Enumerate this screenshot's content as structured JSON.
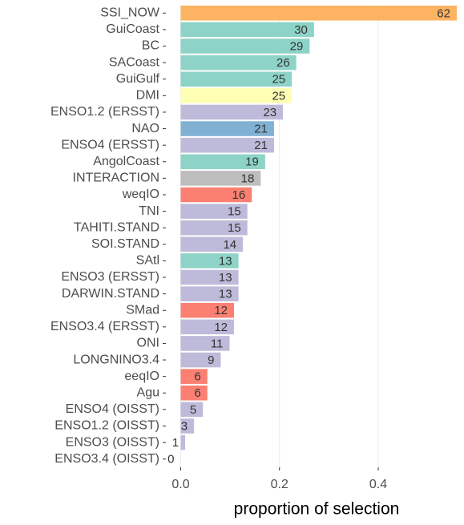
{
  "chart_data": {
    "type": "barh",
    "xlabel": "proportion of selection",
    "categories": [
      "SSI_NOW",
      "GuiCoast",
      "BC",
      "SACoast",
      "GuiGulf",
      "DMI",
      "ENSO1.2 (ERSST)",
      "NAO",
      "ENSO4 (ERSST)",
      "AngolCoast",
      "INTERACTION",
      "weqIO",
      "TNI",
      "TAHITI.STAND",
      "SOI.STAND",
      "SAtl",
      "ENSO3 (ERSST)",
      "DARWIN.STAND",
      "SMad",
      "ENSO3.4 (ERSST)",
      "ONI",
      "LONGNINO3.4",
      "eeqIO",
      "Agu",
      "ENSO4 (OISST)",
      "ENSO1.2 (OISST)",
      "ENSO3 (OISST)",
      "ENSO3.4 (OISST)"
    ],
    "values": [
      0.559,
      0.27,
      0.261,
      0.234,
      0.225,
      0.225,
      0.207,
      0.189,
      0.189,
      0.171,
      0.162,
      0.144,
      0.135,
      0.135,
      0.126,
      0.117,
      0.117,
      0.117,
      0.108,
      0.108,
      0.099,
      0.081,
      0.054,
      0.054,
      0.045,
      0.027,
      0.009,
      0
    ],
    "counts": [
      62,
      30,
      29,
      26,
      25,
      25,
      23,
      21,
      21,
      19,
      18,
      16,
      15,
      15,
      14,
      13,
      13,
      13,
      12,
      12,
      11,
      9,
      6,
      6,
      5,
      3,
      1,
      0
    ],
    "colors": [
      "#fdb462",
      "#8dd3c7",
      "#8dd3c7",
      "#8dd3c7",
      "#8dd3c7",
      "#ffffb3",
      "#bebada",
      "#80b1d3",
      "#bebada",
      "#8dd3c7",
      "#bdbdbd",
      "#fb8072",
      "#bebada",
      "#bebada",
      "#bebada",
      "#8dd3c7",
      "#bebada",
      "#bebada",
      "#fb8072",
      "#bebada",
      "#bebada",
      "#bebada",
      "#fb8072",
      "#fb8072",
      "#bebada",
      "#bebada",
      "#bebada",
      "#bebada"
    ],
    "xlim": [
      -0.03,
      0.572
    ],
    "xticks": [
      {
        "value": 0,
        "label": "0.0"
      },
      {
        "value": 0.2,
        "label": "0.2"
      },
      {
        "value": 0.4,
        "label": "0.4"
      }
    ],
    "grid": true
  }
}
